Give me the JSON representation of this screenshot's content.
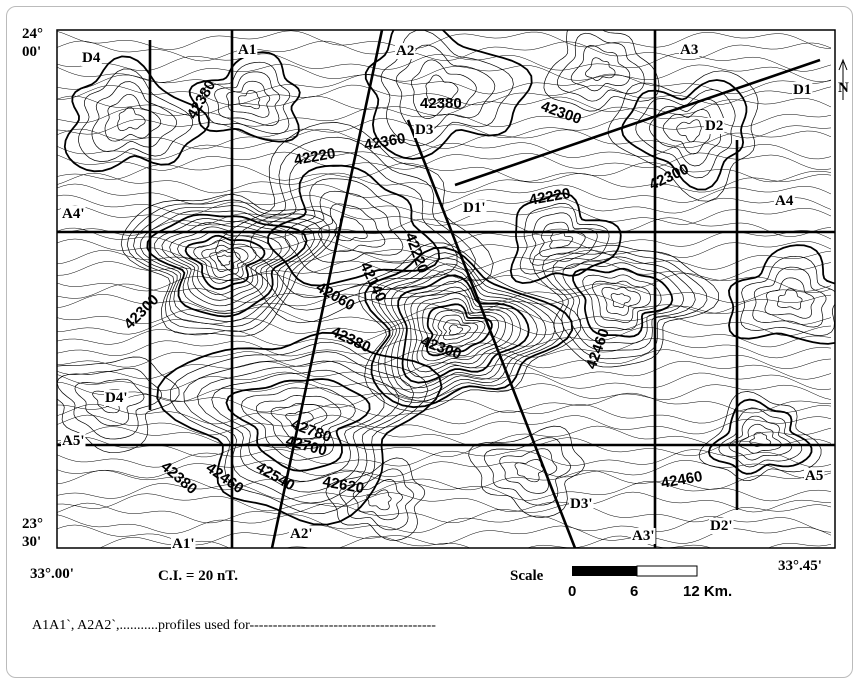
{
  "map": {
    "lat_labels": [
      [
        "24°",
        "00'"
      ],
      [
        "23°",
        "30'"
      ]
    ],
    "lon_labels": [
      "33°.00'",
      "33°.45'"
    ],
    "contour_interval": "C.I. = 20 nT.",
    "scale": {
      "title": "Scale",
      "ticks": [
        "0",
        "6",
        "12 Km."
      ]
    },
    "north": "N",
    "profile_labels": [
      "D4",
      "A1",
      "A2",
      "A3",
      "D1",
      "D3",
      "D2",
      "A4'",
      "A4",
      "D1'",
      "D4'",
      "A5'",
      "A5",
      "A1'",
      "A2'",
      "D3'",
      "A3'",
      "D2'"
    ],
    "contour_labels": [
      "42380",
      "42380",
      "42220",
      "42360",
      "42300",
      "42300",
      "42220",
      "42220",
      "42140",
      "42060",
      "42300",
      "42380",
      "42460",
      "42780",
      "42700",
      "42540",
      "42620",
      "42460",
      "42380",
      "42460",
      "42300"
    ],
    "caption": "A1A1`, A2A2`,...........profiles used for----------------------------------------"
  }
}
